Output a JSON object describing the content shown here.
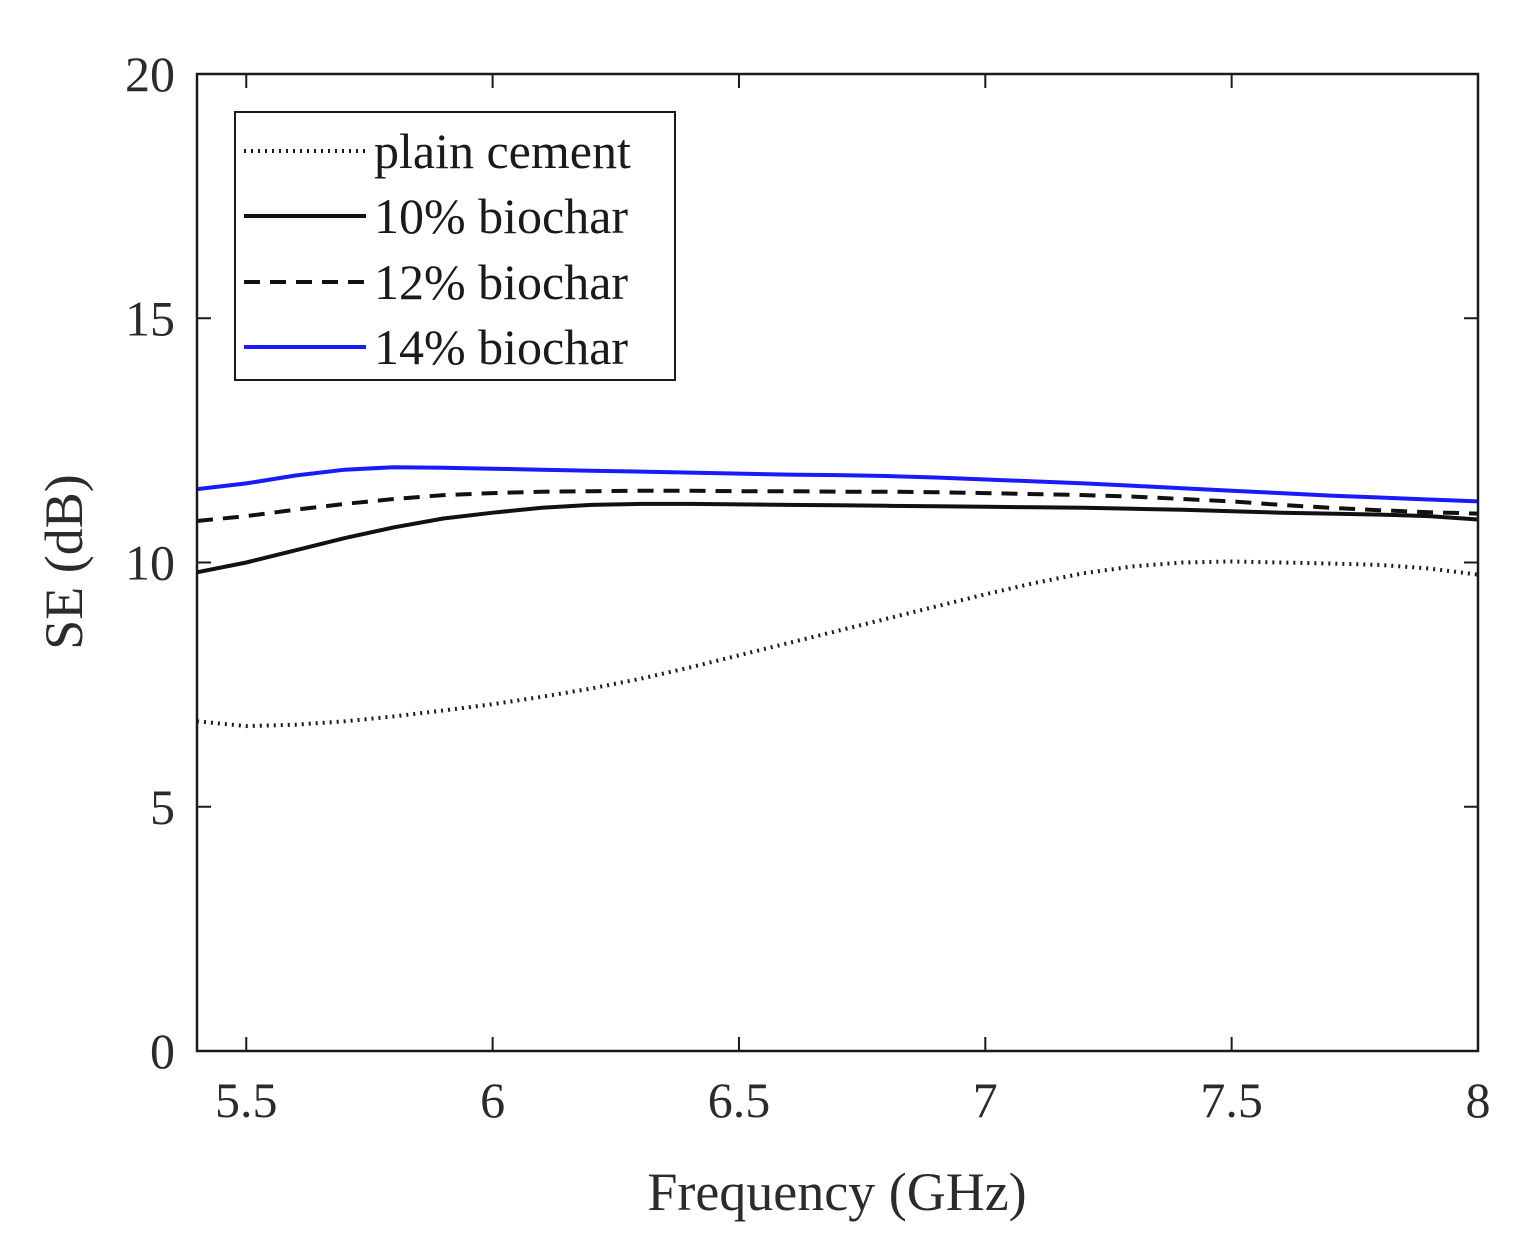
{
  "chart_data": {
    "type": "line",
    "title": "",
    "xlabel": "Frequency (GHz)",
    "ylabel": "SE (dB)",
    "xlim": [
      5.4,
      8
    ],
    "ylim": [
      0,
      20
    ],
    "xticks": [
      5.5,
      6,
      6.5,
      7,
      7.5,
      8
    ],
    "xtick_labels": [
      "5.5",
      "6",
      "6.5",
      "7",
      "7.5",
      "8"
    ],
    "yticks": [
      0,
      5,
      10,
      15,
      20
    ],
    "ytick_labels": [
      "0",
      "5",
      "10",
      "15",
      "20"
    ],
    "grid": false,
    "legend_position": "top-left",
    "series": [
      {
        "name": "plain cement",
        "style": "dotted",
        "color": "#1a1a1a",
        "x": [
          5.4,
          5.5,
          5.6,
          5.7,
          5.8,
          5.9,
          6.0,
          6.1,
          6.2,
          6.3,
          6.4,
          6.5,
          6.6,
          6.7,
          6.8,
          6.9,
          7.0,
          7.1,
          7.2,
          7.3,
          7.4,
          7.5,
          7.6,
          7.7,
          7.8,
          7.9,
          8.0
        ],
        "y": [
          6.75,
          6.65,
          6.68,
          6.75,
          6.85,
          6.97,
          7.1,
          7.25,
          7.42,
          7.62,
          7.85,
          8.1,
          8.35,
          8.6,
          8.85,
          9.1,
          9.35,
          9.58,
          9.78,
          9.92,
          10.0,
          10.02,
          10.0,
          9.98,
          9.95,
          9.88,
          9.75
        ]
      },
      {
        "name": "10% biochar",
        "style": "solid",
        "color": "#111111",
        "x": [
          5.4,
          5.5,
          5.6,
          5.7,
          5.8,
          5.9,
          6.0,
          6.1,
          6.2,
          6.3,
          6.4,
          6.5,
          6.6,
          6.7,
          6.8,
          6.9,
          7.0,
          7.1,
          7.2,
          7.3,
          7.4,
          7.5,
          7.6,
          7.7,
          7.8,
          7.9,
          8.0
        ],
        "y": [
          9.8,
          10.0,
          10.25,
          10.5,
          10.72,
          10.9,
          11.02,
          11.12,
          11.18,
          11.2,
          11.2,
          11.19,
          11.18,
          11.17,
          11.16,
          11.15,
          11.14,
          11.13,
          11.12,
          11.1,
          11.08,
          11.05,
          11.02,
          11.0,
          10.98,
          10.95,
          10.88
        ]
      },
      {
        "name": "12% biochar",
        "style": "dashed",
        "color": "#111111",
        "x": [
          5.4,
          5.5,
          5.6,
          5.7,
          5.8,
          5.9,
          6.0,
          6.1,
          6.2,
          6.3,
          6.4,
          6.5,
          6.6,
          6.7,
          6.8,
          6.9,
          7.0,
          7.1,
          7.2,
          7.3,
          7.4,
          7.5,
          7.6,
          7.7,
          7.8,
          7.9,
          8.0
        ],
        "y": [
          10.85,
          10.95,
          11.08,
          11.2,
          11.3,
          11.38,
          11.42,
          11.45,
          11.46,
          11.47,
          11.47,
          11.46,
          11.46,
          11.45,
          11.45,
          11.44,
          11.42,
          11.4,
          11.38,
          11.35,
          11.3,
          11.25,
          11.18,
          11.12,
          11.07,
          11.03,
          11.0
        ]
      },
      {
        "name": "14% biochar",
        "style": "solid",
        "color": "#1a1aff",
        "x": [
          5.4,
          5.5,
          5.6,
          5.7,
          5.8,
          5.9,
          6.0,
          6.1,
          6.2,
          6.3,
          6.4,
          6.5,
          6.6,
          6.7,
          6.8,
          6.9,
          7.0,
          7.1,
          7.2,
          7.3,
          7.4,
          7.5,
          7.6,
          7.7,
          7.8,
          7.9,
          8.0
        ],
        "y": [
          11.5,
          11.62,
          11.78,
          11.9,
          11.95,
          11.94,
          11.92,
          11.9,
          11.88,
          11.86,
          11.84,
          11.82,
          11.8,
          11.79,
          11.77,
          11.74,
          11.7,
          11.66,
          11.62,
          11.57,
          11.52,
          11.47,
          11.42,
          11.37,
          11.33,
          11.29,
          11.25
        ]
      }
    ]
  }
}
